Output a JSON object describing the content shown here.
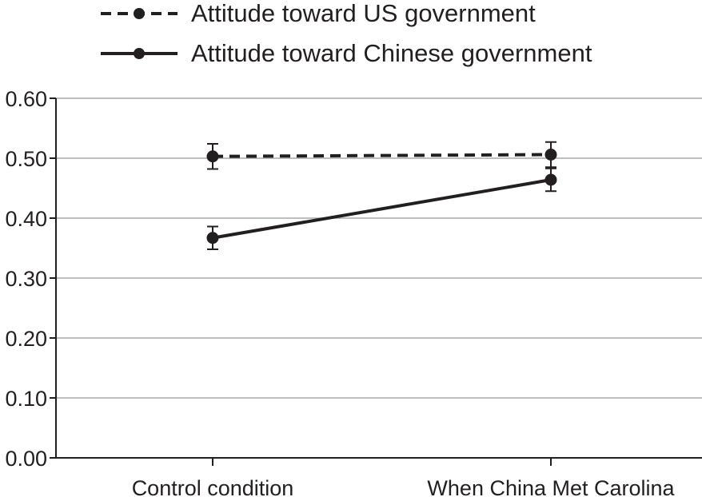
{
  "chart_data": {
    "type": "line",
    "categories": [
      "Control condition",
      "When China Met Carolina"
    ],
    "series": [
      {
        "name": "Attitude toward US government",
        "values": [
          0.503,
          0.506
        ],
        "error": [
          0.021,
          0.021
        ],
        "style": "dashed"
      },
      {
        "name": "Attitude toward Chinese government",
        "values": [
          0.367,
          0.464
        ],
        "error": [
          0.019,
          0.019
        ],
        "style": "solid"
      }
    ],
    "yticks": [
      "0.00",
      "0.10",
      "0.20",
      "0.30",
      "0.40",
      "0.50",
      "0.60"
    ],
    "ylim": [
      0,
      0.6
    ],
    "grid": true,
    "legend_position": "top",
    "colors": {
      "line": "#231f20",
      "grid": "#a7a9ac",
      "axis": "#231f20"
    }
  }
}
